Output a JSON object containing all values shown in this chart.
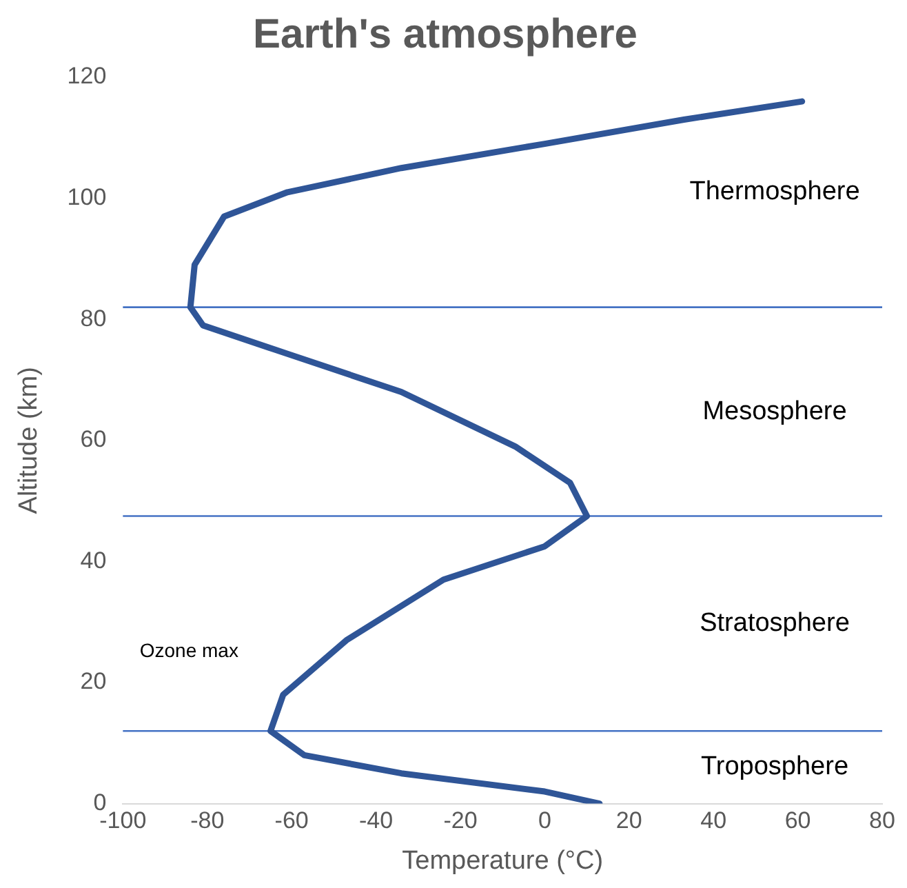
{
  "chart_data": {
    "type": "line",
    "title": "Earth's atmosphere",
    "xlabel": "Temperature (°C)",
    "ylabel": "Altitude (km)",
    "xlim": [
      -100,
      80
    ],
    "xticks": [
      -100,
      -80,
      -60,
      -40,
      -20,
      0,
      20,
      40,
      60,
      80
    ],
    "ylim": [
      0,
      120
    ],
    "yticks": [
      0,
      20,
      40,
      60,
      80,
      100,
      120
    ],
    "grid": false,
    "legend": false,
    "series": [
      {
        "color": "#2f5597",
        "x": [
          13,
          0,
          -34,
          -57,
          -65,
          -62,
          -47,
          -24,
          0,
          10,
          6,
          -7,
          -34,
          -64,
          -81,
          -84,
          -83,
          -76,
          -61,
          -34,
          0,
          33,
          61
        ],
        "values": [
          0,
          2,
          5,
          8,
          12,
          18,
          27,
          37,
          42.5,
          47.5,
          53,
          59,
          68,
          75,
          79,
          82,
          89,
          97,
          101,
          105,
          109,
          113,
          116
        ]
      }
    ],
    "ref_lines": [
      {
        "axis": "y",
        "value": 12,
        "color": "#4472c4"
      },
      {
        "axis": "y",
        "value": 47.5,
        "color": "#4472c4"
      },
      {
        "axis": "y",
        "value": 82,
        "color": "#4472c4"
      }
    ],
    "annotations": [
      "Thermosphere",
      "Mesosphere",
      "Stratosphere",
      "Troposphere",
      "Ozone max"
    ]
  }
}
